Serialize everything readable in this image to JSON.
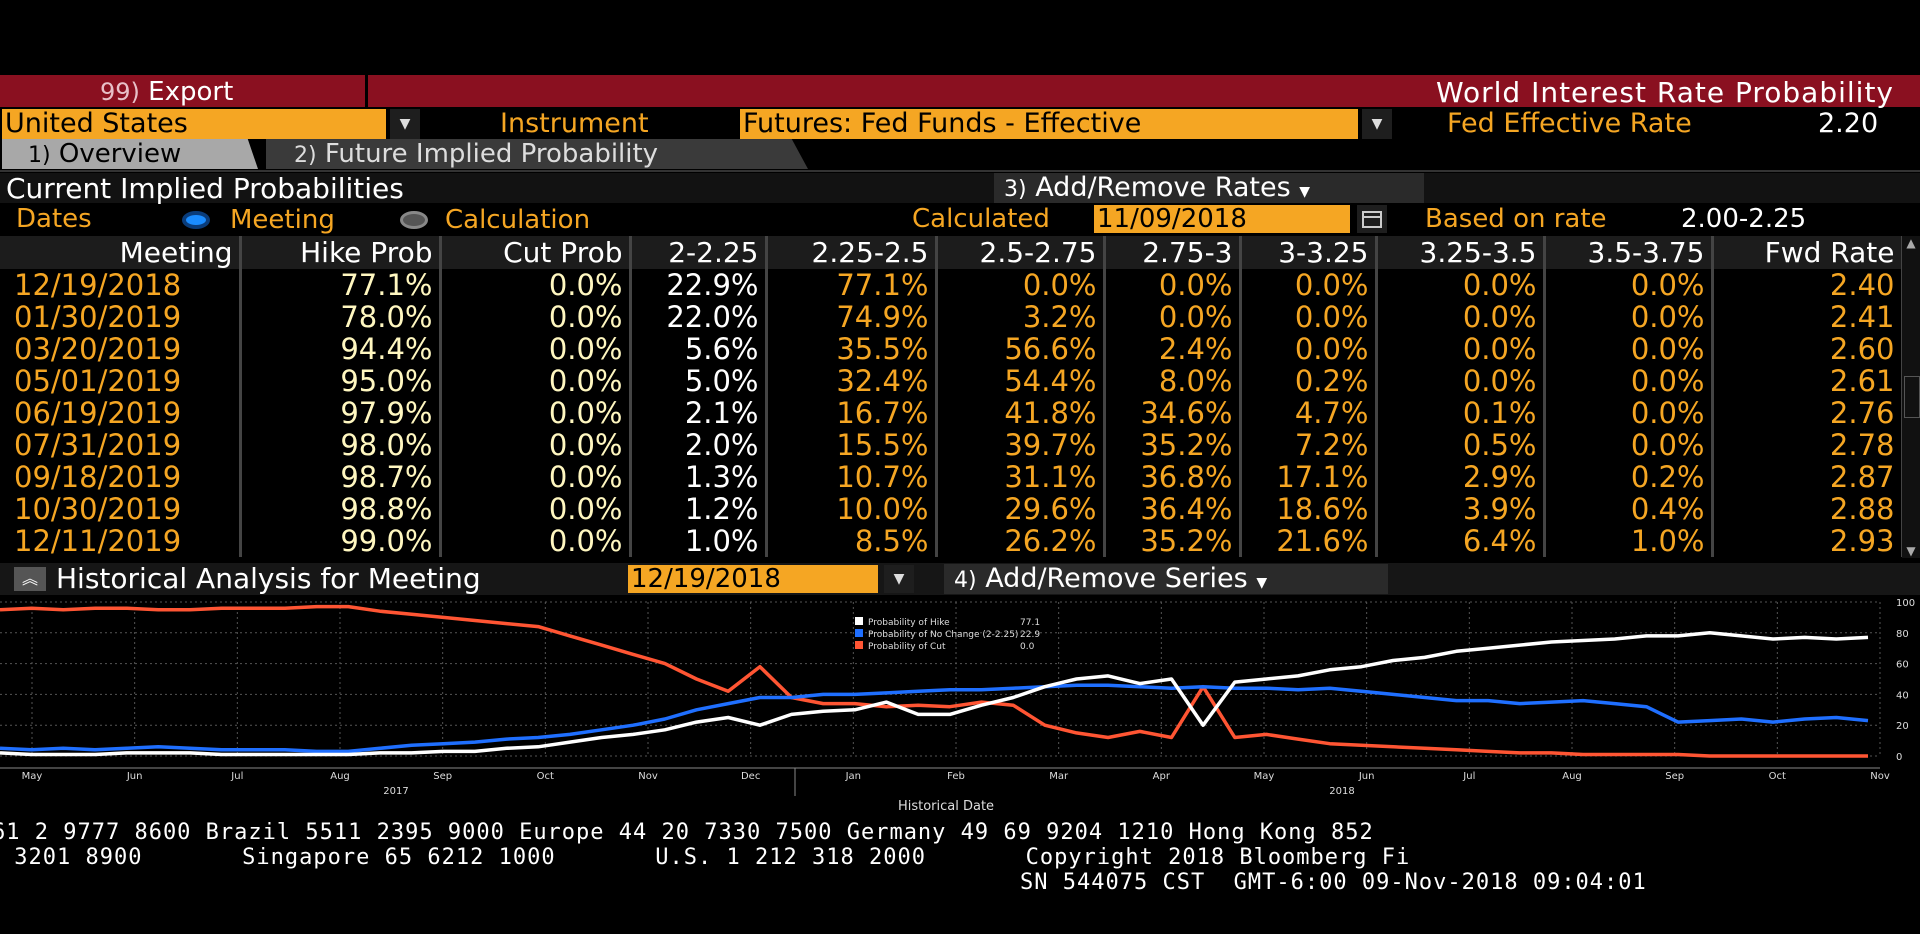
{
  "header": {
    "export_num": "99)",
    "export_label": "Export",
    "window_title": "World Interest Rate Probability"
  },
  "controls": {
    "country": "United States",
    "instrument_label": "Instrument",
    "instrument": "Futures: Fed Funds - Effective",
    "rate_label": "Fed Effective Rate",
    "rate_value": "2.20"
  },
  "tabs": [
    {
      "num": "1)",
      "label": "Overview"
    },
    {
      "num": "2)",
      "label": "Future Implied Probability"
    }
  ],
  "current": {
    "title": "Current Implied Probabilities",
    "add_remove_num": "3)",
    "add_remove_label": "Add/Remove Rates",
    "dates_label": "Dates",
    "opt_meeting": "Meeting",
    "opt_calculation": "Calculation",
    "calculated_label": "Calculated",
    "calculated_date": "11/09/2018",
    "based_on_label": "Based on rate",
    "based_on_value": "2.00-2.25"
  },
  "table": {
    "columns": [
      "Meeting",
      "Hike Prob",
      "Cut Prob",
      "2-2.25",
      "2.25-2.5",
      "2.5-2.75",
      "2.75-3",
      "3-3.25",
      "3.25-3.5",
      "3.5-3.75",
      "Fwd Rate"
    ],
    "rows": [
      [
        "12/19/2018",
        "77.1%",
        "0.0%",
        "22.9%",
        "77.1%",
        "0.0%",
        "0.0%",
        "0.0%",
        "0.0%",
        "0.0%",
        "2.40"
      ],
      [
        "01/30/2019",
        "78.0%",
        "0.0%",
        "22.0%",
        "74.9%",
        "3.2%",
        "0.0%",
        "0.0%",
        "0.0%",
        "0.0%",
        "2.41"
      ],
      [
        "03/20/2019",
        "94.4%",
        "0.0%",
        "5.6%",
        "35.5%",
        "56.6%",
        "2.4%",
        "0.0%",
        "0.0%",
        "0.0%",
        "2.60"
      ],
      [
        "05/01/2019",
        "95.0%",
        "0.0%",
        "5.0%",
        "32.4%",
        "54.4%",
        "8.0%",
        "0.2%",
        "0.0%",
        "0.0%",
        "2.61"
      ],
      [
        "06/19/2019",
        "97.9%",
        "0.0%",
        "2.1%",
        "16.7%",
        "41.8%",
        "34.6%",
        "4.7%",
        "0.1%",
        "0.0%",
        "2.76"
      ],
      [
        "07/31/2019",
        "98.0%",
        "0.0%",
        "2.0%",
        "15.5%",
        "39.7%",
        "35.2%",
        "7.2%",
        "0.5%",
        "0.0%",
        "2.78"
      ],
      [
        "09/18/2019",
        "98.7%",
        "0.0%",
        "1.3%",
        "10.7%",
        "31.1%",
        "36.8%",
        "17.1%",
        "2.9%",
        "0.2%",
        "2.87"
      ],
      [
        "10/30/2019",
        "98.8%",
        "0.0%",
        "1.2%",
        "10.0%",
        "29.6%",
        "36.4%",
        "18.6%",
        "3.9%",
        "0.4%",
        "2.88"
      ],
      [
        "12/11/2019",
        "99.0%",
        "0.0%",
        "1.0%",
        "8.5%",
        "26.2%",
        "35.2%",
        "21.6%",
        "6.4%",
        "1.0%",
        "2.93"
      ]
    ]
  },
  "historical": {
    "title": "Historical Analysis for Meeting",
    "meeting_date": "12/19/2018",
    "add_series_num": "4)",
    "add_series_label": "Add/Remove Series",
    "xlabel": "Historical Date"
  },
  "chart_data": {
    "type": "line",
    "xlabel": "Historical Date",
    "x_ticks": [
      "May",
      "Jun",
      "Jul",
      "Aug",
      "Sep",
      "Oct",
      "Nov",
      "Dec",
      "Jan",
      "Feb",
      "Mar",
      "Apr",
      "May",
      "Jun",
      "Jul",
      "Aug",
      "Sep",
      "Oct",
      "Nov"
    ],
    "year_labels": [
      "2017",
      "2018"
    ],
    "y_ticks": [
      0,
      20,
      40,
      60,
      80,
      100
    ],
    "ylim": [
      0,
      100
    ],
    "grid": true,
    "legend_position": "top-center",
    "series": [
      {
        "name": "Probability of Hike",
        "color": "#ffffff",
        "last": "77.1",
        "values": [
          2,
          1,
          1,
          1,
          2,
          2,
          2,
          1,
          1,
          1,
          1,
          1,
          2,
          2,
          3,
          3,
          5,
          6,
          9,
          12,
          14,
          17,
          22,
          25,
          20,
          27,
          29,
          30,
          35,
          27,
          27,
          33,
          38,
          45,
          50,
          52,
          47,
          50,
          20,
          48,
          50,
          52,
          56,
          58,
          62,
          64,
          68,
          70,
          72,
          74,
          75,
          76,
          78,
          78,
          80,
          78,
          76,
          77,
          76,
          77
        ]
      },
      {
        "name": "Probability of No Change (2-2.25)",
        "color": "#1f6fff",
        "last": "22.9",
        "values": [
          5,
          4,
          5,
          4,
          5,
          6,
          5,
          4,
          4,
          4,
          3,
          3,
          5,
          7,
          8,
          9,
          11,
          12,
          14,
          17,
          20,
          24,
          30,
          34,
          38,
          38,
          40,
          40,
          41,
          42,
          43,
          43,
          44,
          45,
          46,
          46,
          45,
          44,
          45,
          44,
          44,
          43,
          44,
          42,
          40,
          38,
          36,
          36,
          34,
          35,
          36,
          34,
          32,
          22,
          23,
          24,
          22,
          24,
          25,
          23
        ]
      },
      {
        "name": "Probability of Cut",
        "color": "#ff5533",
        "last": "0.0",
        "values": [
          95,
          96,
          95,
          96,
          96,
          95,
          95,
          96,
          96,
          96,
          97,
          97,
          94,
          92,
          90,
          88,
          86,
          84,
          78,
          72,
          66,
          60,
          50,
          42,
          58,
          38,
          34,
          34,
          32,
          33,
          32,
          35,
          33,
          20,
          15,
          12,
          16,
          12,
          45,
          12,
          14,
          11,
          8,
          7,
          6,
          5,
          4,
          3,
          2,
          2,
          1,
          1,
          1,
          1,
          0,
          0,
          0,
          0,
          0,
          0
        ]
      }
    ]
  },
  "footer": {
    "line1": "61 2 9777 8600 Brazil 5511 2395 9000 Europe 44 20 7330 7500 Germany 49 69 9204 1210 Hong Kong 852",
    "line2": " 3201 8900       Singapore 65 6212 1000       U.S. 1 212 318 2000       Copyright 2018 Bloomberg Fi",
    "line3": "SN 544075 CST  GMT-6:00 09-Nov-2018 09:04:01"
  }
}
